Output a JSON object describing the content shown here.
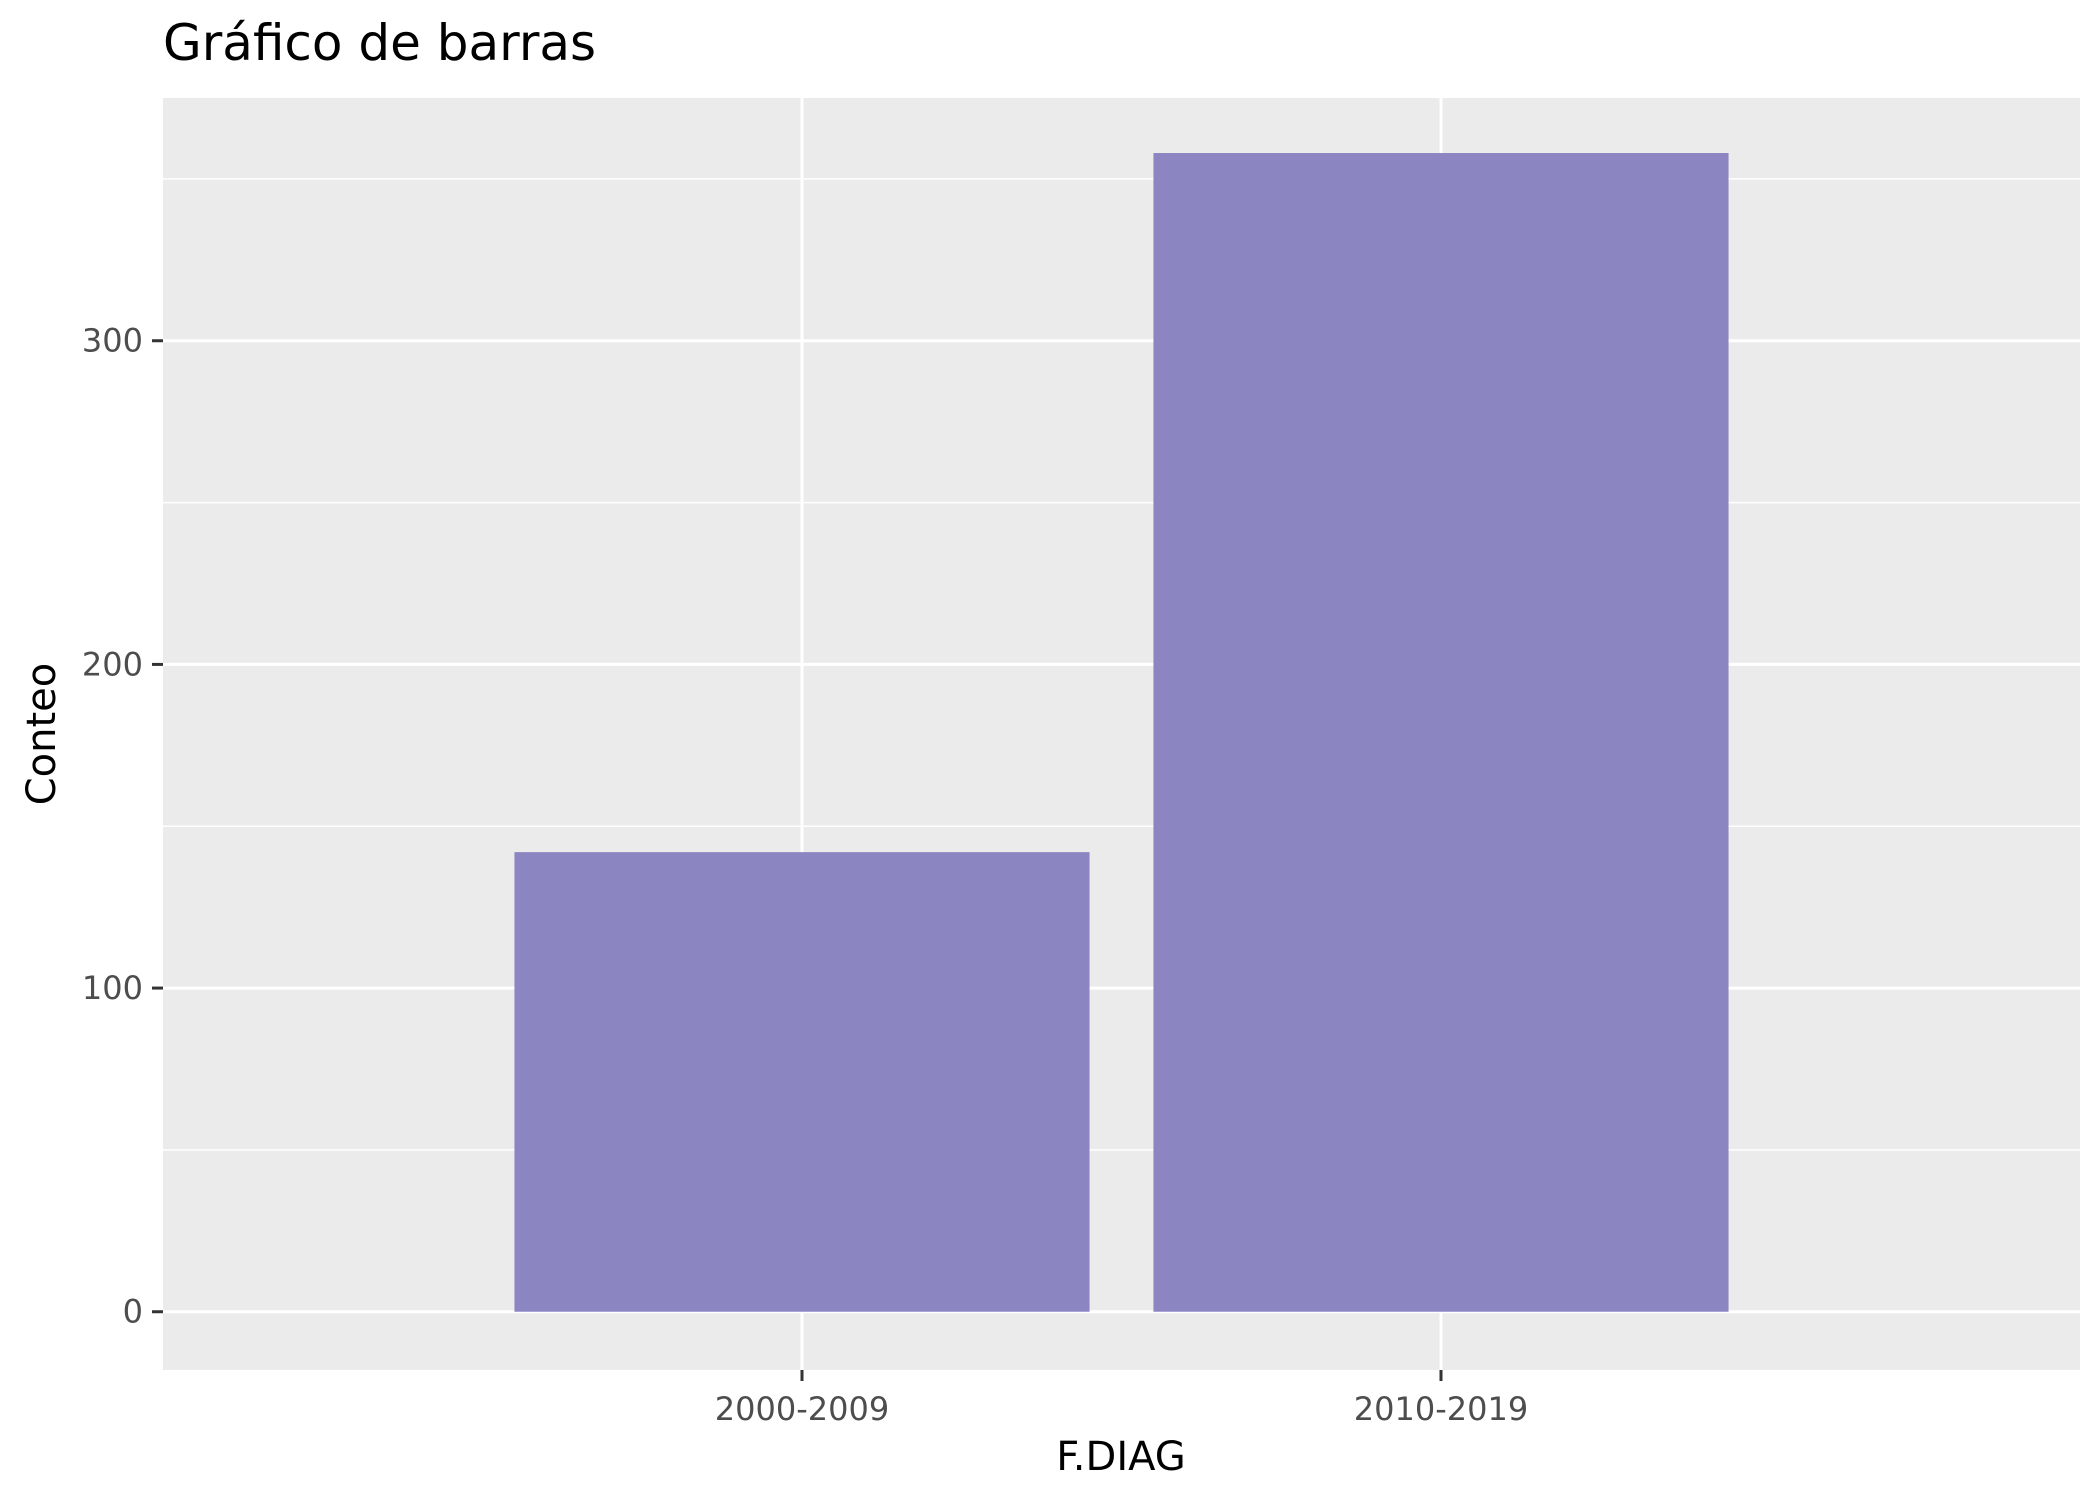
{
  "chart_data": {
    "type": "bar",
    "title": "Gráfico de barras",
    "xlabel": "F.DIAG",
    "ylabel": "Conteo",
    "categories": [
      "2000-2009",
      "2010-2019"
    ],
    "values": [
      142,
      358
    ],
    "ylim": [
      -18,
      375
    ],
    "yticks": [
      0,
      100,
      200,
      300
    ],
    "yticks_labels": [
      "0",
      "100",
      "200",
      "300"
    ],
    "grid": true,
    "legend": "none",
    "colors": {
      "bar": "#8b85c1",
      "panel": "#ebebeb",
      "grid": "#ffffff"
    }
  }
}
